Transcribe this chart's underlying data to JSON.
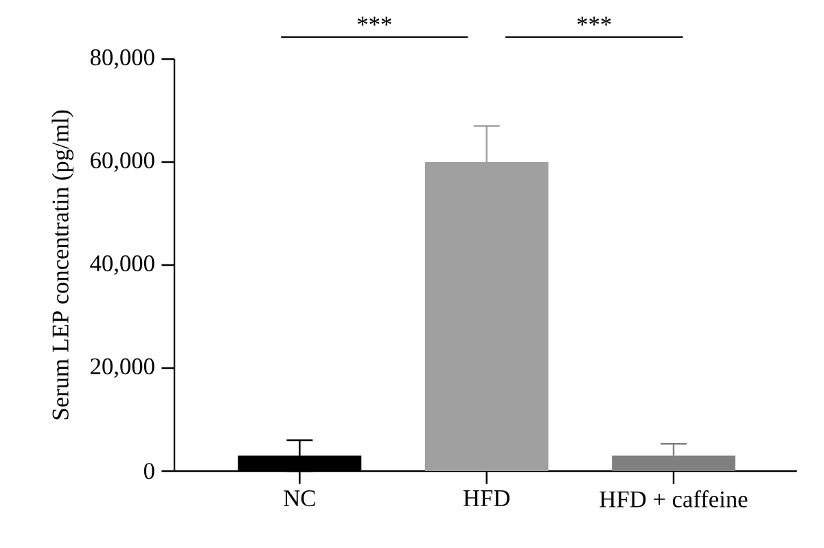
{
  "chart_data": {
    "type": "bar",
    "ylabel": "Serum LEP concentratin (pg/ml)",
    "categories": [
      "NC",
      "HFD",
      "HFD + caffeine"
    ],
    "values": [
      3000,
      60000,
      3000
    ],
    "colors": [
      "#000000",
      "#a0a0a0",
      "#808080"
    ],
    "errors": [
      3000,
      7000,
      2300
    ],
    "ylim": [
      0,
      80000
    ],
    "yticks": [
      {
        "value": 0,
        "label": "0"
      },
      {
        "value": 20000,
        "label": "20,000"
      },
      {
        "value": 40000,
        "label": "40,000"
      },
      {
        "value": 60000,
        "label": "60,000"
      },
      {
        "value": 80000,
        "label": "80,000"
      }
    ],
    "grid": false,
    "annotations": [
      "***",
      "***"
    ]
  }
}
